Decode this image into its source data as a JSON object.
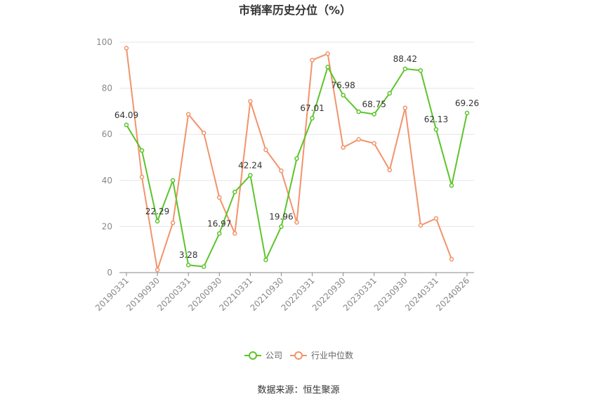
{
  "chart_data": {
    "type": "line",
    "title": "市销率历史分位（%）",
    "ylim": [
      0,
      100
    ],
    "yticks": [
      0,
      20,
      40,
      60,
      80,
      100
    ],
    "x_tick_labels": [
      "20190331",
      "20190930",
      "20200331",
      "20200930",
      "20210331",
      "20210930",
      "20220331",
      "20220930",
      "20230331",
      "20230930",
      "20240331",
      "20240826"
    ],
    "grid": true,
    "legend_position": "bottom",
    "series": [
      {
        "name": "公司",
        "color": "#5cc42a",
        "values": [
          64.09,
          53.0,
          22.29,
          40.0,
          3.28,
          2.6,
          16.97,
          35.0,
          42.24,
          5.5,
          19.96,
          49.5,
          67.01,
          89.2,
          76.98,
          69.8,
          68.75,
          77.8,
          88.42,
          87.7,
          62.13,
          37.8,
          69.26
        ],
        "labels": {
          "0": "64.09",
          "2": "22.29",
          "4": "3.28",
          "6": "16.97",
          "8": "42.24",
          "10": "19.96",
          "12": "67.01",
          "14": "76.98",
          "16": "68.75",
          "18": "88.42",
          "20": "62.13",
          "22": "69.26"
        }
      },
      {
        "name": "行业中位数",
        "color": "#f2936b",
        "values": [
          97.4,
          41.5,
          1.2,
          21.6,
          68.7,
          60.6,
          32.6,
          17.0,
          74.3,
          53.3,
          44.2,
          21.8,
          92.2,
          95.0,
          54.3,
          57.8,
          56.1,
          44.5,
          71.5,
          20.5,
          23.5,
          5.8,
          null
        ]
      }
    ]
  },
  "source_text": "数据来源：恒生聚源"
}
